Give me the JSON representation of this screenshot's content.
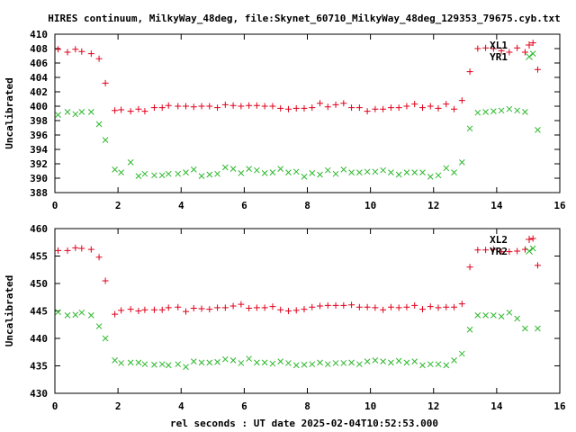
{
  "title": "HIRES continuum, MilkyWay_48deg, file:Skynet_60710_MilkyWay_48deg_129353_79675.cyb.txt",
  "xlabel": "rel seconds : UT date 2025-02-04T10:52:53.000",
  "colors": {
    "red": "#e0001a",
    "green": "#2eb82e",
    "axis": "#000000"
  },
  "chart_data": [
    {
      "type": "scatter",
      "ylabel": "Uncalibrated",
      "xlim": [
        0,
        16
      ],
      "ylim": [
        388,
        410
      ],
      "xticks": [
        0,
        2,
        4,
        6,
        8,
        10,
        12,
        14,
        16
      ],
      "yticks": [
        388,
        390,
        392,
        394,
        396,
        398,
        400,
        402,
        404,
        406,
        408,
        410
      ],
      "series": [
        {
          "name": "XL1",
          "marker": "plus",
          "color": "#e0001a",
          "x": [
            0.1,
            0.4,
            0.65,
            0.85,
            1.15,
            1.4,
            1.6,
            1.9,
            2.1,
            2.4,
            2.65,
            2.85,
            3.15,
            3.4,
            3.6,
            3.9,
            4.15,
            4.4,
            4.65,
            4.9,
            5.15,
            5.4,
            5.65,
            5.9,
            6.15,
            6.4,
            6.65,
            6.9,
            7.15,
            7.4,
            7.65,
            7.9,
            8.15,
            8.4,
            8.65,
            8.9,
            9.15,
            9.4,
            9.65,
            9.9,
            10.15,
            10.4,
            10.65,
            10.9,
            11.15,
            11.4,
            11.65,
            11.9,
            12.15,
            12.4,
            12.65,
            12.9,
            13.15,
            13.4,
            13.65,
            13.9,
            14.15,
            14.4,
            14.65,
            14.9,
            15.15,
            15.3
          ],
          "y": [
            407.9,
            407.5,
            407.9,
            407.6,
            407.3,
            406.6,
            403.2,
            399.4,
            399.5,
            399.3,
            399.6,
            399.3,
            399.8,
            399.8,
            400.1,
            400.0,
            400.0,
            399.9,
            400.0,
            400.0,
            399.8,
            400.2,
            400.1,
            400.0,
            400.1,
            400.1,
            400.0,
            400.0,
            399.7,
            399.6,
            399.7,
            399.7,
            399.8,
            400.4,
            399.9,
            400.2,
            400.4,
            399.8,
            399.8,
            399.3,
            399.6,
            399.6,
            399.8,
            399.8,
            400.0,
            400.3,
            399.8,
            400.0,
            399.7,
            400.3,
            399.6,
            400.8,
            404.8,
            408.0,
            408.1,
            408.0,
            407.7,
            407.5,
            408.1,
            407.5,
            408.8,
            405.1
          ]
        },
        {
          "name": "YR1",
          "marker": "cross",
          "color": "#2eb82e",
          "x": [
            0.1,
            0.4,
            0.65,
            0.85,
            1.15,
            1.4,
            1.6,
            1.9,
            2.1,
            2.4,
            2.65,
            2.85,
            3.15,
            3.4,
            3.6,
            3.9,
            4.15,
            4.4,
            4.65,
            4.9,
            5.15,
            5.4,
            5.65,
            5.9,
            6.15,
            6.4,
            6.65,
            6.9,
            7.15,
            7.4,
            7.65,
            7.9,
            8.15,
            8.4,
            8.65,
            8.9,
            9.15,
            9.4,
            9.65,
            9.9,
            10.15,
            10.4,
            10.65,
            10.9,
            11.15,
            11.4,
            11.65,
            11.9,
            12.15,
            12.4,
            12.65,
            12.9,
            13.15,
            13.4,
            13.65,
            13.9,
            14.15,
            14.4,
            14.65,
            14.9,
            15.15,
            15.3
          ],
          "y": [
            398.8,
            399.2,
            398.9,
            399.2,
            399.2,
            397.5,
            395.3,
            391.2,
            390.8,
            392.2,
            390.3,
            390.6,
            390.4,
            390.4,
            390.6,
            390.6,
            390.8,
            391.2,
            390.3,
            390.5,
            390.6,
            391.5,
            391.3,
            390.7,
            391.3,
            391.1,
            390.7,
            390.8,
            391.3,
            390.8,
            390.9,
            390.2,
            390.7,
            390.5,
            391.1,
            390.6,
            391.2,
            390.8,
            390.8,
            390.9,
            390.9,
            391.1,
            390.8,
            390.5,
            390.8,
            390.8,
            390.8,
            390.2,
            390.4,
            391.4,
            390.8,
            392.2,
            396.9,
            399.1,
            399.2,
            399.3,
            399.4,
            399.6,
            399.4,
            399.2,
            407.3,
            396.7
          ]
        }
      ]
    },
    {
      "type": "scatter",
      "ylabel": "Uncalibrated",
      "xlim": [
        0,
        16
      ],
      "ylim": [
        430,
        460
      ],
      "xticks": [
        0,
        2,
        4,
        6,
        8,
        10,
        12,
        14,
        16
      ],
      "yticks": [
        430,
        435,
        440,
        445,
        450,
        455,
        460
      ],
      "series": [
        {
          "name": "XL2",
          "marker": "plus",
          "color": "#e0001a",
          "x": [
            0.1,
            0.4,
            0.65,
            0.85,
            1.15,
            1.4,
            1.6,
            1.9,
            2.1,
            2.4,
            2.65,
            2.85,
            3.15,
            3.4,
            3.6,
            3.9,
            4.15,
            4.4,
            4.65,
            4.9,
            5.15,
            5.4,
            5.65,
            5.9,
            6.15,
            6.4,
            6.65,
            6.9,
            7.15,
            7.4,
            7.65,
            7.9,
            8.15,
            8.4,
            8.65,
            8.9,
            9.15,
            9.4,
            9.65,
            9.9,
            10.15,
            10.4,
            10.65,
            10.9,
            11.15,
            11.4,
            11.65,
            11.9,
            12.15,
            12.4,
            12.65,
            12.9,
            13.15,
            13.4,
            13.65,
            13.9,
            14.15,
            14.4,
            14.65,
            14.9,
            15.15,
            15.3
          ],
          "y": [
            456.0,
            456.0,
            456.5,
            456.4,
            456.2,
            454.8,
            450.5,
            444.4,
            445.1,
            445.3,
            445.0,
            445.2,
            445.2,
            445.2,
            445.6,
            445.7,
            444.9,
            445.5,
            445.4,
            445.3,
            445.6,
            445.6,
            445.9,
            446.2,
            445.5,
            445.6,
            445.6,
            445.8,
            445.2,
            445.0,
            445.1,
            445.3,
            445.7,
            445.9,
            446.0,
            446.0,
            446.0,
            446.1,
            445.7,
            445.7,
            445.6,
            445.2,
            445.7,
            445.6,
            445.7,
            446.0,
            445.3,
            445.8,
            445.6,
            445.7,
            445.7,
            446.3,
            453.0,
            456.1,
            456.1,
            456.2,
            455.8,
            455.8,
            455.9,
            456.2,
            458.2,
            453.3
          ]
        },
        {
          "name": "YR2",
          "marker": "cross",
          "color": "#2eb82e",
          "x": [
            0.1,
            0.4,
            0.65,
            0.85,
            1.15,
            1.4,
            1.6,
            1.9,
            2.1,
            2.4,
            2.65,
            2.85,
            3.15,
            3.4,
            3.6,
            3.9,
            4.15,
            4.4,
            4.65,
            4.9,
            5.15,
            5.4,
            5.65,
            5.9,
            6.15,
            6.4,
            6.65,
            6.9,
            7.15,
            7.4,
            7.65,
            7.9,
            8.15,
            8.4,
            8.65,
            8.9,
            9.15,
            9.4,
            9.65,
            9.9,
            10.15,
            10.4,
            10.65,
            10.9,
            11.15,
            11.4,
            11.65,
            11.9,
            12.15,
            12.4,
            12.65,
            12.9,
            13.15,
            13.4,
            13.65,
            13.9,
            14.15,
            14.4,
            14.65,
            14.9,
            15.15,
            15.3
          ],
          "y": [
            444.8,
            444.2,
            444.3,
            444.7,
            444.2,
            442.2,
            440.0,
            436.0,
            435.5,
            435.6,
            435.6,
            435.3,
            435.2,
            435.3,
            435.1,
            435.3,
            434.8,
            435.8,
            435.6,
            435.6,
            435.7,
            436.2,
            436.0,
            435.5,
            436.3,
            435.6,
            435.6,
            435.4,
            435.8,
            435.5,
            435.1,
            435.2,
            435.3,
            435.6,
            435.3,
            435.5,
            435.5,
            435.6,
            435.3,
            435.8,
            436.0,
            435.8,
            435.6,
            435.9,
            435.6,
            435.8,
            435.1,
            435.3,
            435.3,
            435.1,
            436.0,
            437.2,
            441.6,
            444.2,
            444.2,
            444.2,
            444.0,
            444.7,
            443.6,
            441.8,
            456.4,
            441.8
          ]
        }
      ]
    }
  ]
}
